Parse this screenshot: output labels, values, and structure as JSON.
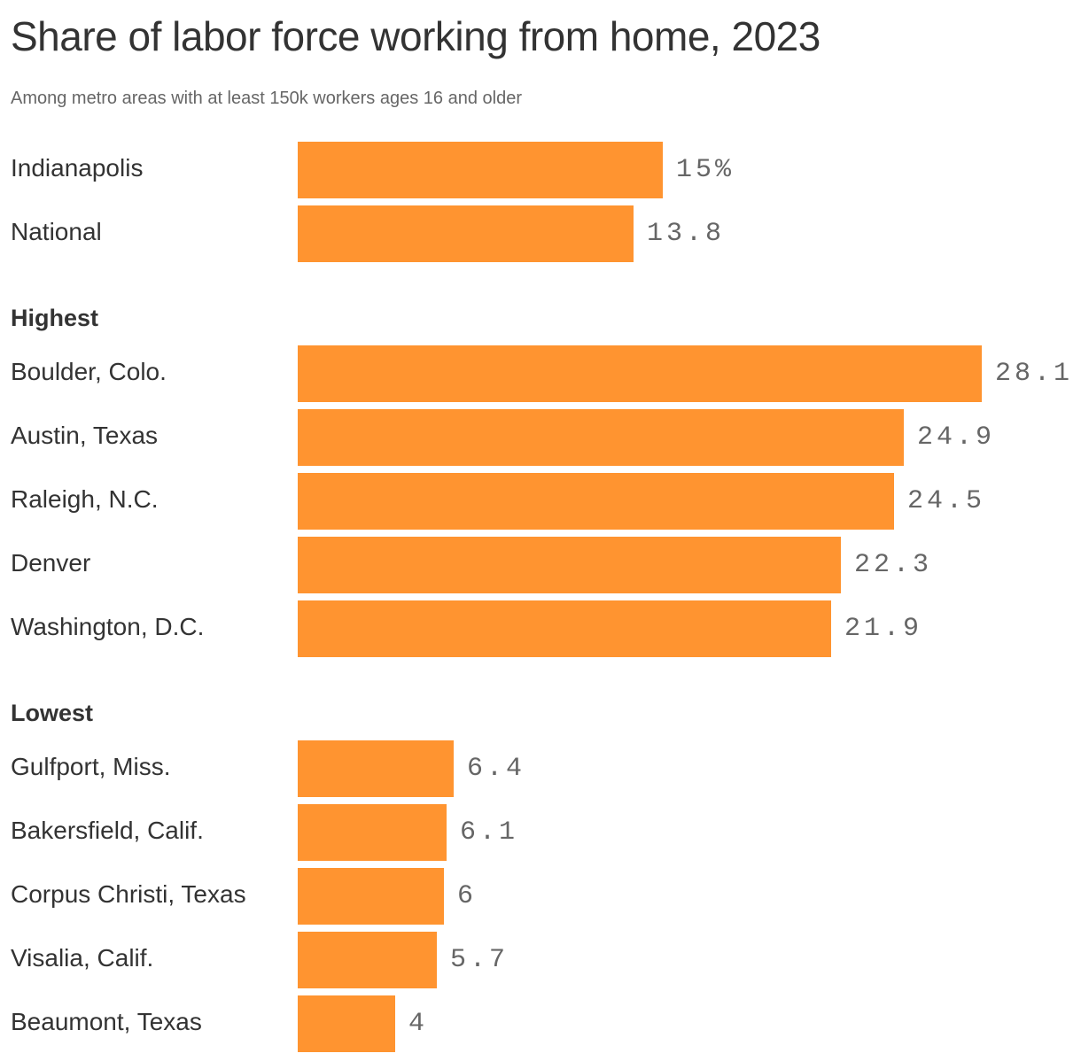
{
  "header": {
    "title": "Share of labor force working from home, 2023",
    "subtitle": "Among metro areas with at least 150k workers ages 16 and older"
  },
  "sections": {
    "highest_label": "Highest",
    "lowest_label": "Lowest"
  },
  "colors": {
    "bar": "#ff9430",
    "text": "#333333",
    "muted": "#666666"
  },
  "rows": {
    "indianapolis": {
      "label": "Indianapolis",
      "value": 15,
      "display": "15%"
    },
    "national": {
      "label": "National",
      "value": 13.8,
      "display": "13.8"
    },
    "boulder": {
      "label": "Boulder, Colo.",
      "value": 28.1,
      "display": "28.1"
    },
    "austin": {
      "label": "Austin, Texas",
      "value": 24.9,
      "display": "24.9"
    },
    "raleigh": {
      "label": "Raleigh, N.C.",
      "value": 24.5,
      "display": "24.5"
    },
    "denver": {
      "label": "Denver",
      "value": 22.3,
      "display": "22.3"
    },
    "washington": {
      "label": "Washington, D.C.",
      "value": 21.9,
      "display": "21.9"
    },
    "gulfport": {
      "label": "Gulfport, Miss.",
      "value": 6.4,
      "display": "6.4"
    },
    "bakersfield": {
      "label": "Bakersfield, Calif.",
      "value": 6.1,
      "display": "6.1"
    },
    "corpus": {
      "label": "Corpus Christi, Texas",
      "value": 6,
      "display": "6"
    },
    "visalia": {
      "label": "Visalia, Calif.",
      "value": 5.7,
      "display": "5.7"
    },
    "beaumont": {
      "label": "Beaumont, Texas",
      "value": 4,
      "display": "4"
    }
  },
  "chart_data": {
    "type": "bar",
    "orientation": "horizontal",
    "title": "Share of labor force working from home, 2023",
    "subtitle": "Among metro areas with at least 150k workers ages 16 and older",
    "xlabel": "",
    "ylabel": "",
    "unit": "%",
    "grid": false,
    "legend": null,
    "groups": [
      {
        "name": "",
        "categories": [
          "Indianapolis",
          "National"
        ],
        "values": [
          15,
          13.8
        ]
      },
      {
        "name": "Highest",
        "categories": [
          "Boulder, Colo.",
          "Austin, Texas",
          "Raleigh, N.C.",
          "Denver",
          "Washington, D.C."
        ],
        "values": [
          28.1,
          24.9,
          24.5,
          22.3,
          21.9
        ]
      },
      {
        "name": "Lowest",
        "categories": [
          "Gulfport, Miss.",
          "Bakersfield, Calif.",
          "Corpus Christi, Texas",
          "Visalia, Calif.",
          "Beaumont, Texas"
        ],
        "values": [
          6.4,
          6.1,
          6,
          5.7,
          4
        ]
      }
    ],
    "categories": [
      "Indianapolis",
      "National",
      "Boulder, Colo.",
      "Austin, Texas",
      "Raleigh, N.C.",
      "Denver",
      "Washington, D.C.",
      "Gulfport, Miss.",
      "Bakersfield, Calif.",
      "Corpus Christi, Texas",
      "Visalia, Calif.",
      "Beaumont, Texas"
    ],
    "values": [
      15,
      13.8,
      28.1,
      24.9,
      24.5,
      22.3,
      21.9,
      6.4,
      6.1,
      6,
      5.7,
      4
    ],
    "xlim": [
      0,
      28.1
    ]
  }
}
